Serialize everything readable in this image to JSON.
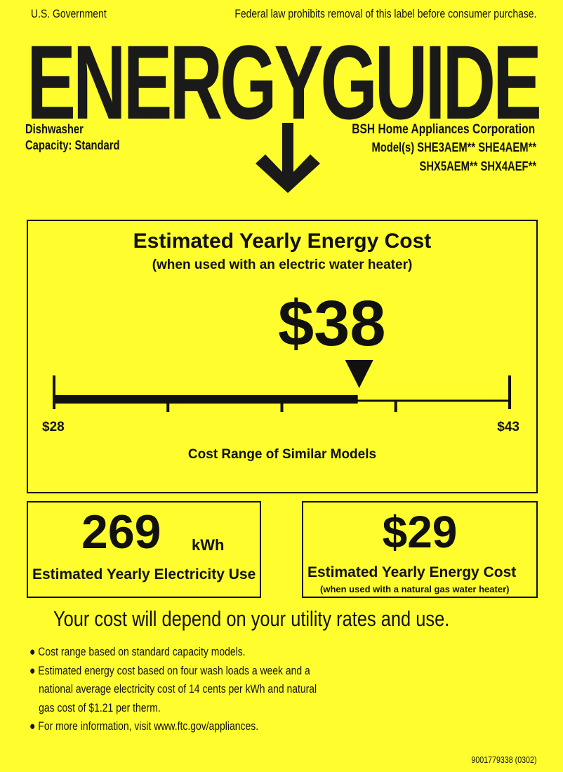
{
  "header": {
    "left": "U.S. Government",
    "right": "Federal law prohibits removal of this label before consumer purchase."
  },
  "logo": "ENERGYGUIDE",
  "appliance": {
    "type": "Dishwasher",
    "capacity_label": "Capacity:",
    "capacity": "Standard"
  },
  "manufacturer": {
    "name": "BSH Home Appliances Corporation",
    "models_line1": "Model(s) SHE3AEM** SHE4AEM**",
    "models_line2": "SHX5AEM** SHX4AEF**"
  },
  "main": {
    "title": "Estimated Yearly Energy Cost",
    "subtitle": "(when used with an electric water heater)",
    "cost": "$38",
    "cost_value": 38,
    "range_min": 28,
    "range_max": 43,
    "min_label": "$28",
    "max_label": "$43",
    "range_caption": "Cost Range of Similar Models"
  },
  "electricity": {
    "value": "269",
    "unit": "kWh",
    "label": "Estimated Yearly Electricity Use"
  },
  "gas": {
    "value": "$29",
    "label": "Estimated Yearly Energy Cost",
    "sublabel": "(when used with a natural gas water heater)"
  },
  "notice": "Your cost will depend on your utility rates and use.",
  "bullets": [
    "Cost range based on standard capacity models.",
    "Estimated energy cost based on four wash loads a week and a",
    "national average electricity cost of 14 cents per kWh and natural",
    "gas cost of $1.21 per therm.",
    "For more information, visit www.ftc.gov/appliances."
  ],
  "footer_code": "9001779338 (0302)",
  "colors": {
    "background": "#fffd2e",
    "ink": "#111111"
  }
}
